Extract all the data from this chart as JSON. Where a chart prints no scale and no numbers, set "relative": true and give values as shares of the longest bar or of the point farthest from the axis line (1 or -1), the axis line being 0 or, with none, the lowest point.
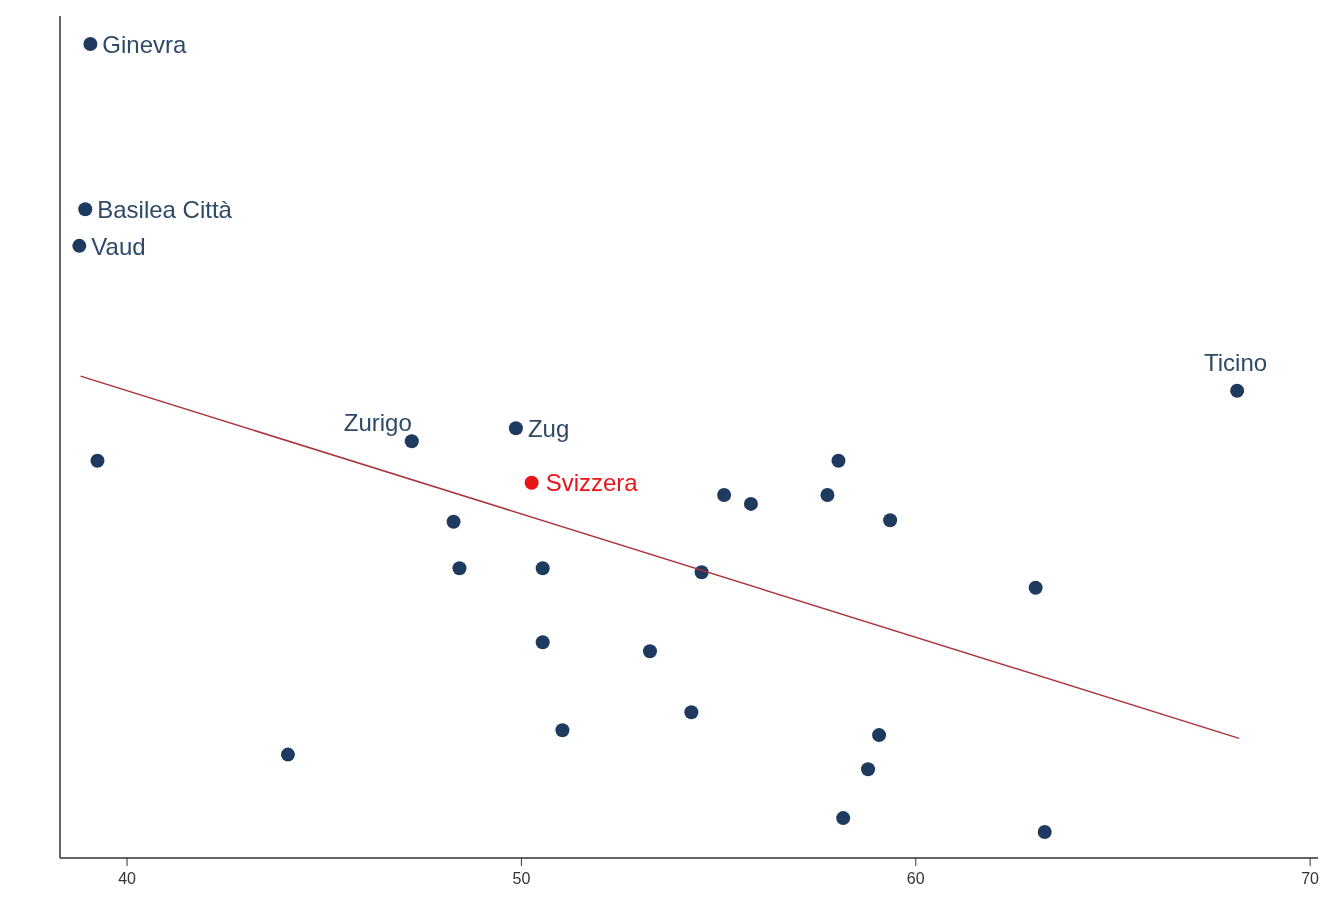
{
  "chart_data": {
    "type": "scatter",
    "relative": true,
    "xlim": [
      38.3,
      70.2
    ],
    "xticks": [
      40,
      50,
      60,
      70
    ],
    "series": [
      {
        "color": "#1f3a5f",
        "marker": "circle",
        "x": [
          39.07,
          38.94,
          38.79,
          68.15,
          47.22,
          49.86,
          39.25,
          48.28,
          48.43,
          50.54,
          50.54,
          53.26,
          51.04,
          44.08,
          54.31,
          54.57,
          55.14,
          55.82,
          57.76,
          58.04,
          59.35,
          58.16,
          58.79,
          59.07,
          63.04,
          63.27
        ],
        "values": [
          1,
          0.797,
          0.752,
          0.574,
          0.512,
          0.528,
          0.488,
          0.413,
          0.356,
          0.356,
          0.265,
          0.254,
          0.157,
          0.127,
          0.179,
          0.351,
          0.446,
          0.435,
          0.446,
          0.488,
          0.415,
          0.049,
          0.109,
          0.151,
          0.332,
          0.032
        ]
      },
      {
        "name": "Svizzera",
        "color": "#e8141a",
        "marker": "circle",
        "x": [
          50.26
        ],
        "values": [
          0.461
        ]
      },
      {
        "type": "line",
        "color": "#a8343a",
        "x": [
          38.82,
          68.2
        ],
        "values": [
          0.592,
          0.147
        ],
        "marker": "none"
      }
    ],
    "annotations": [
      {
        "text": "Ginevra",
        "x": 39.07,
        "y": 1
      },
      {
        "text": "Basilea Città",
        "x": 38.94,
        "y": 0.797
      },
      {
        "text": "Vaud",
        "x": 38.79,
        "y": 0.752
      },
      {
        "text": "Ticino",
        "x": 68.15,
        "y": 0.574
      },
      {
        "text": "Zurigo",
        "x": 47.22,
        "y": 0.512
      },
      {
        "text": "Zug",
        "x": 49.86,
        "y": 0.528
      }
    ]
  }
}
